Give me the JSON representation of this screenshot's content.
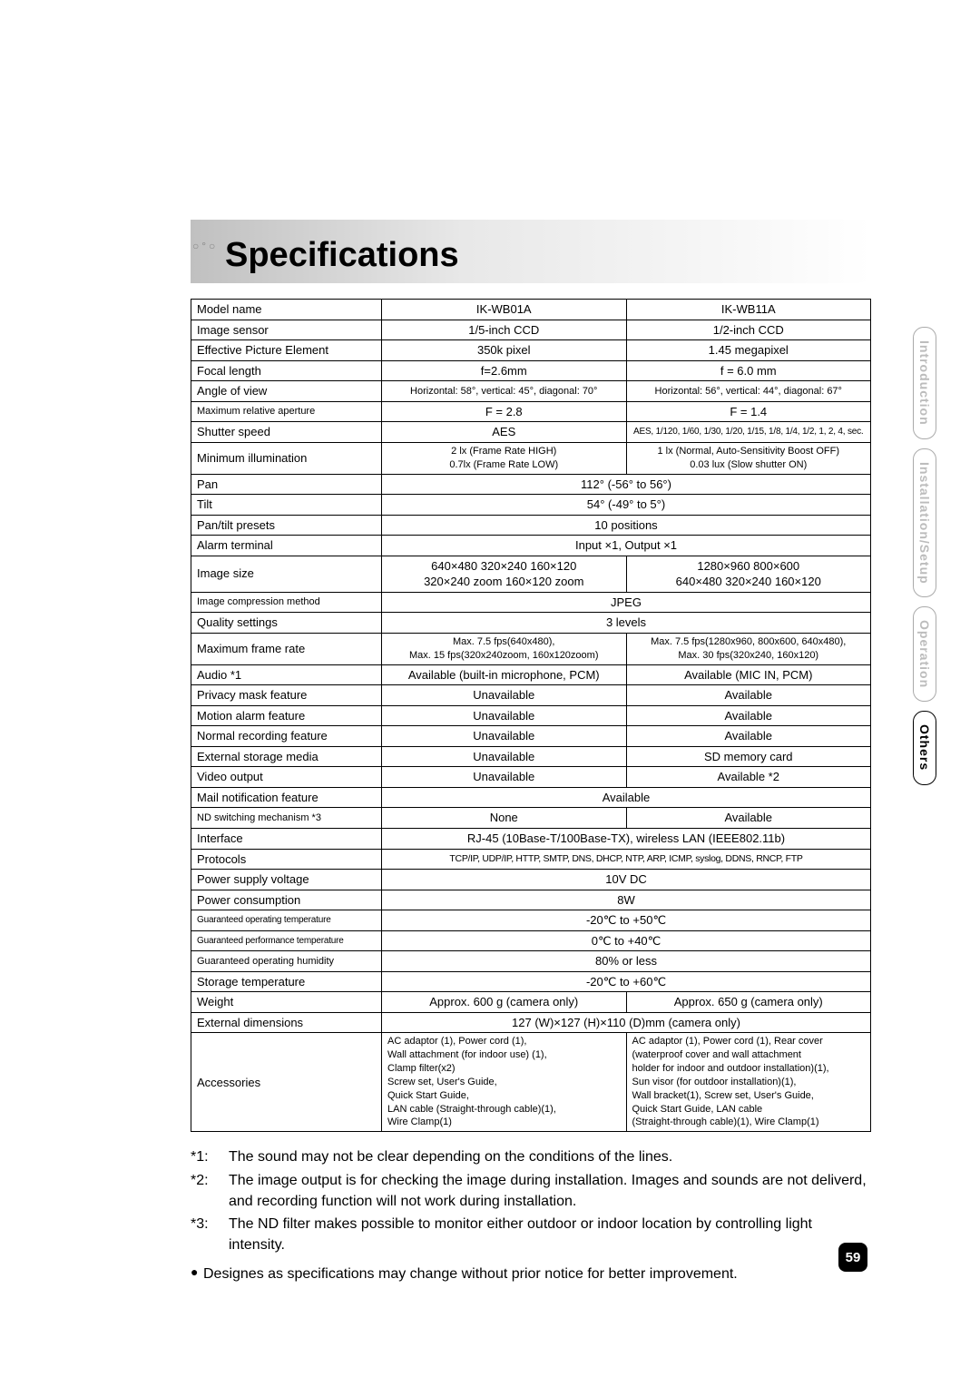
{
  "title": "Specifications",
  "page_number": "59",
  "side_tabs": [
    "Introduction",
    "Installation/Setup",
    "Operation",
    "Others"
  ],
  "active_tab_index": 3,
  "headers": {
    "col1": "IK-WB01A",
    "col2": "IK-WB11A"
  },
  "rows": [
    {
      "label": "Model name",
      "c1": "IK-WB01A",
      "c2": "IK-WB11A"
    },
    {
      "label": "Image sensor",
      "c1": "1/5-inch CCD",
      "c2": "1/2-inch CCD"
    },
    {
      "label": "Effective Picture Element",
      "c1": "350k pixel",
      "c2": "1.45 megapixel"
    },
    {
      "label": "Focal length",
      "c1": "f=2.6mm",
      "c2": "f = 6.0 mm"
    },
    {
      "label": "Angle of view",
      "c1": "Horizontal: 58°, vertical: 45°, diagonal: 70°",
      "c2": "Horizontal: 56°, vertical: 44°, diagonal: 67°",
      "small": true
    },
    {
      "label": "Maximum relative aperture",
      "c1": "F = 2.8",
      "c2": "F = 1.4",
      "label_small": true
    },
    {
      "label": "Shutter speed",
      "c1": "AES",
      "c2": "AES, 1/120, 1/60, 1/30, 1/20, 1/15, 1/8, 1/4, 1/2, 1, 2, 4, sec.",
      "c2_xsmall": true
    },
    {
      "label": "Minimum illumination",
      "c1": "2 lx (Frame Rate HIGH)\n0.7lx (Frame Rate LOW)",
      "c2": "1 lx (Normal, Auto-Sensitivity Boost OFF)\n0.03 lux (Slow shutter ON)",
      "small": true,
      "multiline": true
    },
    {
      "label": "Pan",
      "span": "112° (-56° to 56°)"
    },
    {
      "label": "Tilt",
      "span": "54° (-49° to 5°)"
    },
    {
      "label": "Pan/tilt presets",
      "span": "10 positions"
    },
    {
      "label": "Alarm terminal",
      "span": "Input ×1, Output ×1"
    },
    {
      "label": "Image size",
      "c1": "640×480  320×240  160×120\n320×240 zoom  160×120 zoom",
      "c2": "1280×960  800×600\n640×480  320×240  160×120",
      "multiline": true
    },
    {
      "label": "Image compression method",
      "span": "JPEG",
      "label_small": true
    },
    {
      "label": "Quality settings",
      "span": "3 levels"
    },
    {
      "label": "Maximum frame rate",
      "c1": "Max. 7.5 fps(640x480),\nMax. 15 fps(320x240zoom, 160x120zoom)",
      "c2": "Max. 7.5 fps(1280x960, 800x600, 640x480),\nMax. 30 fps(320x240, 160x120)",
      "small": true,
      "multiline": true
    },
    {
      "label": "Audio *1",
      "c1": "Available (built-in microphone, PCM)",
      "c2": "Available (MIC IN, PCM)"
    },
    {
      "label": "Privacy mask feature",
      "c1": "Unavailable",
      "c2": "Available"
    },
    {
      "label": "Motion alarm feature",
      "c1": "Unavailable",
      "c2": "Available"
    },
    {
      "label": "Normal recording feature",
      "c1": "Unavailable",
      "c2": "Available"
    },
    {
      "label": "External storage media",
      "c1": "Unavailable",
      "c2": "SD memory card"
    },
    {
      "label": "Video output",
      "c1": "Unavailable",
      "c2": "Available *2"
    },
    {
      "label": "Mail notification feature",
      "span": "Available"
    },
    {
      "label": "ND switching mechanism *3",
      "c1": "None",
      "c2": "Available",
      "label_small": true
    },
    {
      "label": "Interface",
      "span": "RJ-45 (10Base-T/100Base-TX), wireless LAN (IEEE802.11b)"
    },
    {
      "label": "Protocols",
      "span": "TCP/IP, UDP/IP, HTTP, SMTP, DNS, DHCP, NTP, ARP, ICMP, syslog, DDNS, RNCP, FTP",
      "span_small": true
    },
    {
      "label": "Power supply voltage",
      "span": "10V DC"
    },
    {
      "label": "Power consumption",
      "span": "8W"
    },
    {
      "label": "Guaranteed operating temperature",
      "span": "-20℃ to +50℃",
      "label_xsmall": true
    },
    {
      "label": "Guaranteed performance temperature",
      "span": "0℃ to +40℃",
      "label_xsmall": true
    },
    {
      "label": "Guaranteed operating humidity",
      "span": "80% or less",
      "label_small": true
    },
    {
      "label": "Storage temperature",
      "span": "-20℃ to +60℃"
    },
    {
      "label": "Weight",
      "c1": "Approx. 600 g (camera only)",
      "c2": "Approx. 650 g (camera only)"
    },
    {
      "label": "External dimensions",
      "span": "127 (W)×127 (H)×110 (D)mm (camera only)"
    },
    {
      "label": "Accessories",
      "c1": "AC adaptor (1), Power cord (1),\nWall attachment (for indoor use) (1),\nClamp filter(x2)\nScrew set, User's Guide,\nQuick Start Guide,\nLAN cable (Straight-through cable)(1),\nWire Clamp(1)",
      "c2": "AC adaptor (1), Power cord (1), Rear cover\n(waterproof cover and wall attachment\nholder for indoor and outdoor installation)(1),\nSun visor (for outdoor installation)(1),\nWall bracket(1), Screw set, User's Guide,\nQuick Start Guide, LAN cable\n(Straight-through cable)(1), Wire Clamp(1)",
      "small": true,
      "multiline": true,
      "left": true
    }
  ],
  "notes": [
    {
      "marker": "*1:",
      "text": "The sound may not be clear depending on the conditions of the lines."
    },
    {
      "marker": "*2:",
      "text": "The image output is for checking the image during installation. Images and sounds are not deliverd, and recording function will not work during installation."
    },
    {
      "marker": "*3:",
      "text": "The ND filter makes possible to monitor either outdoor or indoor location by controlling light intensity."
    }
  ],
  "bullet": "Designes as specifications may change without prior notice for better improvement."
}
